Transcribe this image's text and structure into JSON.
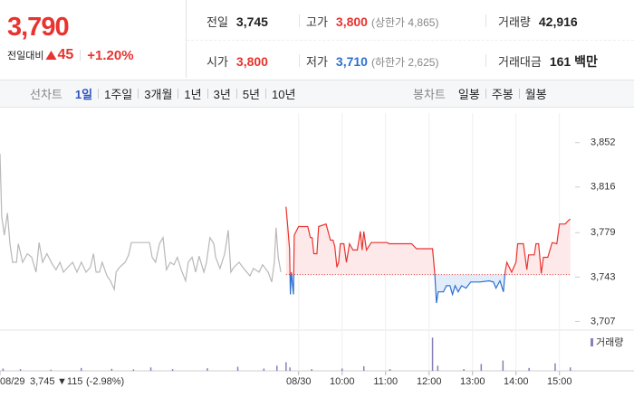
{
  "quote": {
    "price": "3,790",
    "change_label": "전일대비",
    "change": "45",
    "rate": "+1.20%"
  },
  "info": [
    [
      {
        "label": "전일",
        "value": "3,745",
        "color": "#222222"
      },
      {
        "label": "고가",
        "value": "3,800",
        "note": "(상한가 4,865)",
        "color": "#e8332f"
      },
      {
        "label": "거래량",
        "value": "42,916",
        "color": "#222222"
      }
    ],
    [
      {
        "label": "시가",
        "value": "3,800",
        "color": "#e8332f"
      },
      {
        "label": "저가",
        "value": "3,710",
        "note": "(하한가 2,625)",
        "color": "#2d6fd2"
      },
      {
        "label": "거래대금",
        "value": "161 백만",
        "color": "#222222"
      }
    ]
  ],
  "tabs": {
    "line_label": "선차트",
    "line": [
      "1일",
      "1주일",
      "3개월",
      "1년",
      "3년",
      "5년",
      "10년"
    ],
    "line_selected": 0,
    "candle_label": "봉차트",
    "candle": [
      "일봉",
      "주봉",
      "월봉"
    ]
  },
  "chart_data": {
    "type": "line",
    "xlim": [
      2.13,
      15.36
    ],
    "ylim": [
      3700,
      3876
    ],
    "xticks": [
      {
        "value": 2.13,
        "label": "08/29"
      },
      {
        "value": 9,
        "label": "08/30"
      },
      {
        "value": 10,
        "label": "10:00"
      },
      {
        "value": 11,
        "label": "11:00"
      },
      {
        "value": 12,
        "label": "12:00"
      },
      {
        "value": 13,
        "label": "13:00"
      },
      {
        "value": 14,
        "label": "14:00"
      },
      {
        "value": 15,
        "label": "15:00"
      }
    ],
    "yticks": [
      {
        "value": 3852,
        "label": "3,852"
      },
      {
        "value": 3816,
        "label": "3,816"
      },
      {
        "value": 3779,
        "label": "3,779"
      },
      {
        "value": 3743,
        "label": "3,743"
      },
      {
        "value": 3707,
        "label": "3,707"
      }
    ],
    "baseline": 3745,
    "series": [
      {
        "color": "#b8b8b8",
        "x": [
          2.13,
          2.17,
          2.23,
          2.3,
          2.36,
          2.42,
          2.51,
          2.55,
          2.65,
          2.76,
          2.86,
          2.96,
          3.03,
          3.11,
          3.21,
          3.34,
          3.42,
          3.51,
          3.59,
          3.69,
          3.8,
          3.9,
          4.0,
          4.11,
          4.21,
          4.28,
          4.34,
          4.42,
          4.48,
          4.59,
          4.67,
          4.76,
          4.8,
          4.88,
          5.01,
          5.09,
          5.15,
          5.36,
          5.57,
          5.63,
          5.71,
          5.8,
          5.88,
          5.96,
          6.05,
          6.13,
          6.21,
          6.3,
          6.4,
          6.46,
          6.55,
          6.63,
          6.71,
          6.82,
          6.88,
          6.96,
          7.05,
          7.09,
          7.19,
          7.3,
          7.38,
          7.44,
          7.51,
          7.63,
          7.76,
          7.88,
          7.96,
          8.09,
          8.17,
          8.3,
          8.38,
          8.44,
          8.48,
          8.53,
          8.59
        ],
        "values": [
          3843,
          3792,
          3777,
          3795,
          3770,
          3755,
          3755,
          3770,
          3755,
          3762,
          3759,
          3747,
          3771,
          3755,
          3762,
          3753,
          3749,
          3755,
          3747,
          3751,
          3755,
          3747,
          3755,
          3747,
          3751,
          3762,
          3747,
          3747,
          3755,
          3744,
          3740,
          3733,
          3747,
          3751,
          3755,
          3761,
          3771,
          3771,
          3771,
          3759,
          3755,
          3770,
          3775,
          3749,
          3755,
          3753,
          3759,
          3749,
          3740,
          3755,
          3759,
          3747,
          3760,
          3747,
          3755,
          3775,
          3770,
          3759,
          3750,
          3762,
          3781,
          3747,
          3751,
          3755,
          3749,
          3744,
          3750,
          3747,
          3753,
          3747,
          3739,
          3755,
          3783,
          3759,
          3747
        ]
      },
      {
        "color": "#e8332f",
        "color_below": "#2d6fd2",
        "fill": "#fde9e9",
        "fill_below": "#e2edfb",
        "x": [
          8.71,
          8.75,
          8.79,
          8.81,
          8.83,
          8.88,
          8.9,
          9.0,
          9.21,
          9.27,
          9.31,
          9.35,
          9.42,
          9.46,
          9.63,
          9.73,
          9.79,
          9.83,
          9.88,
          9.92,
          9.96,
          10.04,
          10.1,
          10.17,
          10.25,
          10.35,
          10.42,
          10.46,
          10.5,
          10.56,
          10.67,
          10.88,
          11.04,
          11.08,
          11.6,
          11.71,
          12.08,
          12.13,
          12.17,
          12.21,
          12.33,
          12.4,
          12.48,
          12.54,
          12.6,
          12.67,
          12.75,
          12.85,
          12.96,
          13.17,
          13.38,
          13.48,
          13.54,
          13.63,
          13.71,
          13.75,
          13.79,
          13.9,
          14.0,
          14.04,
          14.17,
          14.25,
          14.29,
          14.42,
          14.46,
          14.52,
          14.58,
          14.63,
          14.73,
          14.83,
          14.94,
          15.0,
          15.13,
          15.21,
          15.25
        ],
        "values": [
          3800,
          3784,
          3766,
          3729,
          3747,
          3729,
          3777,
          3784,
          3784,
          3775,
          3775,
          3762,
          3762,
          3784,
          3786,
          3773,
          3773,
          3768,
          3751,
          3755,
          3770,
          3770,
          3755,
          3770,
          3765,
          3765,
          3780,
          3765,
          3780,
          3765,
          3771,
          3771,
          3771,
          3770,
          3770,
          3766,
          3766,
          3746,
          3722,
          3731,
          3731,
          3736,
          3736,
          3729,
          3736,
          3731,
          3736,
          3734,
          3739,
          3739,
          3740,
          3739,
          3734,
          3740,
          3731,
          3747,
          3755,
          3747,
          3755,
          3770,
          3770,
          3749,
          3761,
          3761,
          3770,
          3770,
          3746,
          3759,
          3759,
          3771,
          3770,
          3786,
          3786,
          3789,
          3790
        ]
      }
    ],
    "volume": {
      "name": "거래량",
      "color": "#8a7fb8",
      "lim": [
        0,
        6000
      ],
      "x": [
        2.2,
        2.6,
        3.3,
        4.0,
        4.7,
        5.2,
        5.6,
        6.1,
        6.9,
        7.6,
        8.2,
        8.5,
        8.71,
        8.8,
        9.3,
        10.0,
        10.5,
        11.1,
        12.08,
        12.2,
        12.8,
        13.2,
        13.7,
        14.3,
        14.9,
        15.25
      ],
      "values": [
        400,
        300,
        200,
        500,
        350,
        250,
        600,
        300,
        450,
        700,
        400,
        900,
        1500,
        600,
        300,
        400,
        800,
        300,
        5800,
        900,
        300,
        1200,
        1800,
        500,
        1300,
        600
      ]
    },
    "prev_summary": {
      "close": "3,745",
      "change": "▼115",
      "rate": "(-2.98%)"
    }
  }
}
